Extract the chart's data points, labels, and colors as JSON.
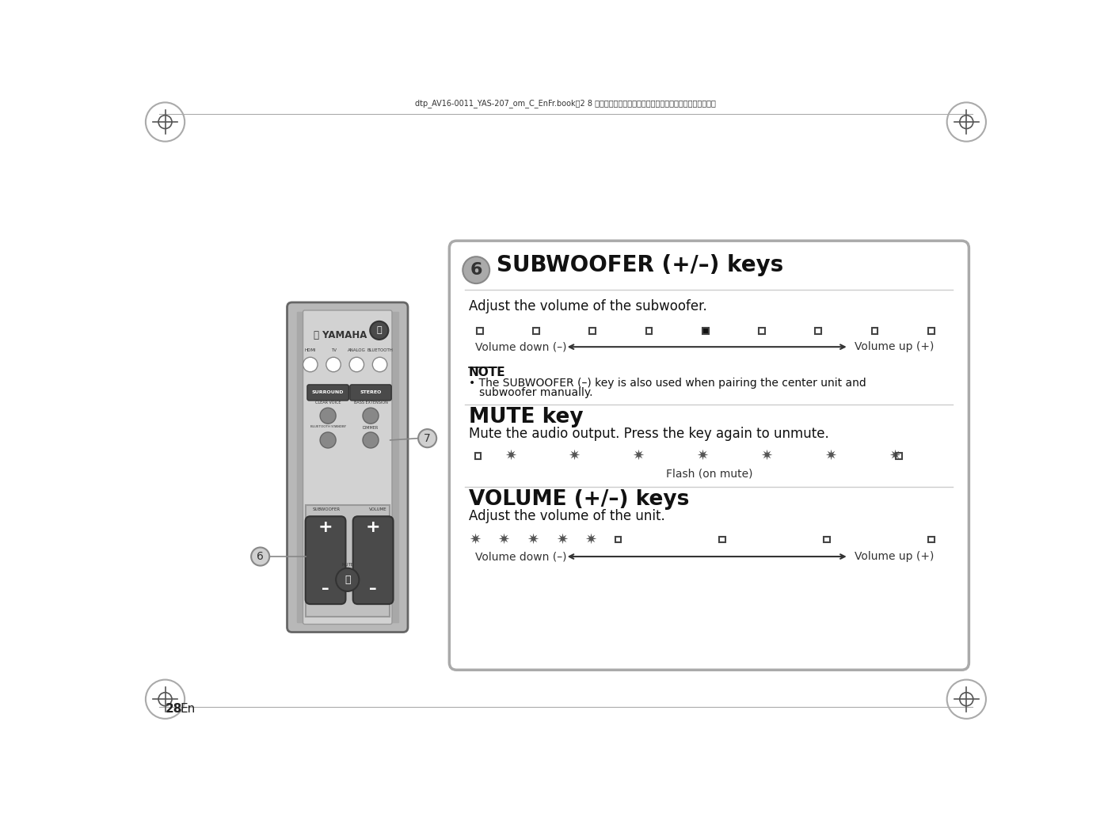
{
  "page_bg": "#ffffff",
  "header_text": "dtp_AV16-0011_YAS-207_om_C_EnFr.book　2 8 ページ　２０１７年４月１３日　木曜日　午後３時４１分",
  "page_number": "28",
  "page_num_label": "En",
  "section_title": "SUBWOOFER (+/–) keys",
  "section_desc": "Adjust the volume of the subwoofer.",
  "note_title": "NOTE",
  "note_line1": "• The SUBWOOFER (–) key is also used when pairing the center unit and",
  "note_line2": "   subwoofer manually.",
  "mute_title": "MUTE key",
  "mute_desc": "Mute the audio output. Press the key again to unmute.",
  "mute_sub": "Flash (on mute)",
  "vol_title": "VOLUME (+/–) keys",
  "vol_desc": "Adjust the volume of the unit.",
  "vol_down": "Volume down (–)",
  "vol_up": "Volume up (+)",
  "remote_bg": "#c8c8c8",
  "button_dark": "#4a4a4a",
  "crosshair_color": "#555555"
}
